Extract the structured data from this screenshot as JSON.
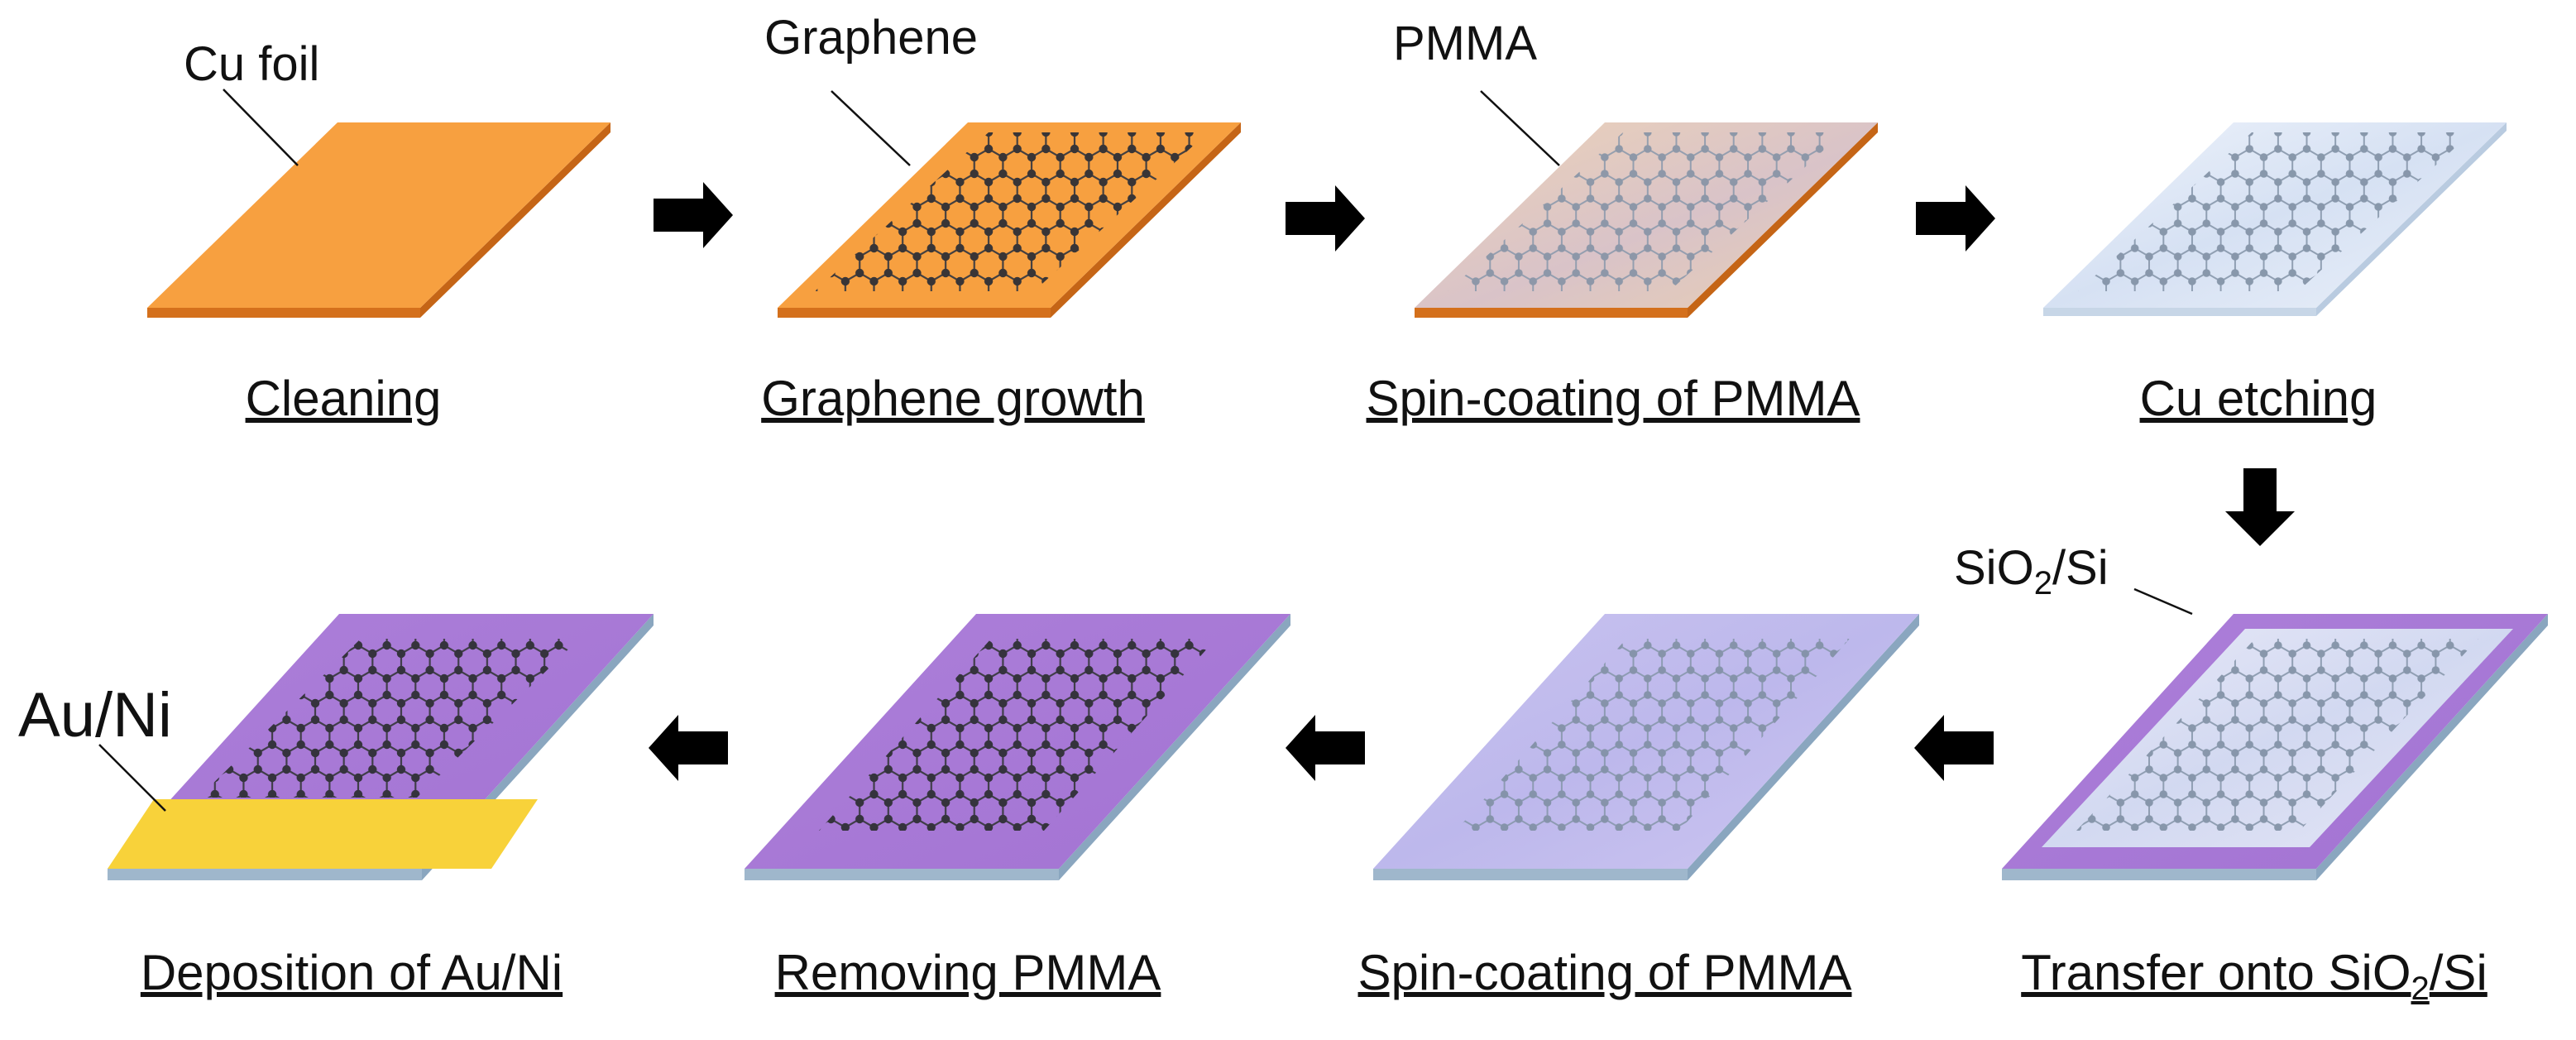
{
  "callouts": {
    "cu_foil": "Cu foil",
    "graphene": "Graphene",
    "pmma": "PMMA",
    "sio2si": {
      "pre": "SiO",
      "sub": "2",
      "post": "/Si"
    },
    "auni": "Au/Ni"
  },
  "steps": [
    {
      "caption": "Cleaning"
    },
    {
      "caption": "Graphene growth"
    },
    {
      "caption": "Spin-coating of PMMA"
    },
    {
      "caption": "Cu etching"
    },
    {
      "caption_pre": "Transfer onto SiO",
      "caption_sub": "2",
      "caption_post": "/Si"
    },
    {
      "caption": "Spin-coating of PMMA"
    },
    {
      "caption": "Removing PMMA"
    },
    {
      "caption": "Deposition of Au/Ni"
    }
  ],
  "colors": {
    "copper": "#f7a040",
    "copper_edge": "#d4701c",
    "pmma_on_cu": "#e7c7a8",
    "film": "#dfe9f8",
    "purple": "#a978d6",
    "purple_edge": "#7e5aa8",
    "substrate_edge": "#9fb7cc",
    "gold": "#f8d23a",
    "atom_dark": "#2f2f35",
    "atom_faded": "#7f8fa3",
    "arrow": "#000000"
  }
}
